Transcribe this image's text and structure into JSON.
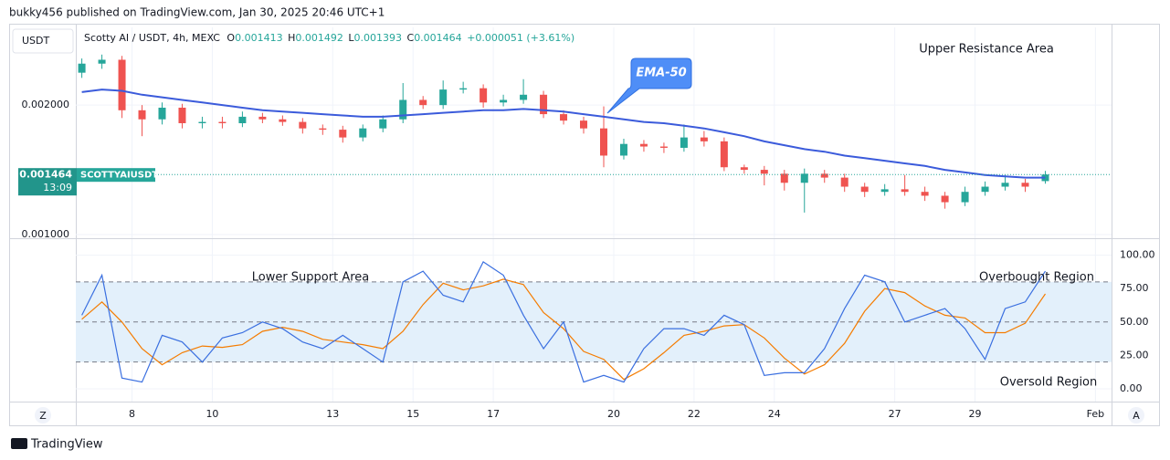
{
  "header": {
    "publisher": "bukky456 published on TradingView.com, Jan 30, 2025 20:46 UTC+1",
    "brand": "TradingView"
  },
  "controls": {
    "left": "Z",
    "right": "A"
  },
  "chart_data": [
    {
      "type": "candlestick",
      "currency": "USDT",
      "symbol": "Scotty AI / USDT, 4h, MEXC",
      "ohlc_labels": [
        "O",
        "H",
        "L",
        "C"
      ],
      "change": "+0.000051 (+3.61%)",
      "ticker": "SCOTTYAIUSDT",
      "countdown": "13:09",
      "up_color": "#26a69a",
      "down_color": "#ef5350",
      "x": [
        6.75,
        7.25,
        7.75,
        8.25,
        8.75,
        9.25,
        9.75,
        10.25,
        10.75,
        11.25,
        11.75,
        12.25,
        12.75,
        13.25,
        13.75,
        14.25,
        14.75,
        15.25,
        15.75,
        16.25,
        16.75,
        17.25,
        17.75,
        18.25,
        18.75,
        19.25,
        19.75,
        20.25,
        20.75,
        21.25,
        21.75,
        22.25,
        22.75,
        23.25,
        23.75,
        24.25,
        24.75,
        25.25,
        25.75,
        26.25,
        26.75,
        27.25,
        27.75,
        28.25,
        28.75,
        29.25,
        29.75,
        30.25,
        30.75
      ],
      "open": [
        0.00225,
        0.00232,
        0.00235,
        0.00196,
        0.00189,
        0.00198,
        0.00186,
        0.00187,
        0.00186,
        0.00191,
        0.00189,
        0.00187,
        0.00182,
        0.00181,
        0.00175,
        0.00182,
        0.00189,
        0.00204,
        0.002,
        0.00212,
        0.00213,
        0.00202,
        0.00204,
        0.00208,
        0.00193,
        0.00188,
        0.00182,
        0.00161,
        0.0017,
        0.00168,
        0.00167,
        0.00175,
        0.00172,
        0.00152,
        0.0015,
        0.00147,
        0.0014,
        0.00147,
        0.00144,
        0.00137,
        0.00133,
        0.00135,
        0.00133,
        0.0013,
        0.00125,
        0.00133,
        0.00137,
        0.0014,
        0.001413
      ],
      "high": [
        0.00236,
        0.00239,
        0.00238,
        0.002,
        0.00202,
        0.00201,
        0.00191,
        0.00191,
        0.00195,
        0.00194,
        0.00192,
        0.0019,
        0.00185,
        0.00184,
        0.00185,
        0.00192,
        0.00217,
        0.00207,
        0.00219,
        0.00218,
        0.00216,
        0.00208,
        0.0022,
        0.00211,
        0.00196,
        0.00191,
        0.00199,
        0.00174,
        0.00173,
        0.00171,
        0.00185,
        0.0018,
        0.00175,
        0.00154,
        0.00153,
        0.0015,
        0.00151,
        0.0015,
        0.00147,
        0.0014,
        0.00139,
        0.00146,
        0.00137,
        0.00133,
        0.00137,
        0.00141,
        0.00146,
        0.00143,
        0.001492
      ],
      "low": [
        0.00221,
        0.00228,
        0.0019,
        0.00176,
        0.00185,
        0.00182,
        0.00182,
        0.00182,
        0.00183,
        0.00186,
        0.00184,
        0.00178,
        0.00177,
        0.00171,
        0.00172,
        0.00179,
        0.00186,
        0.00197,
        0.00197,
        0.00209,
        0.00198,
        0.00199,
        0.00201,
        0.0019,
        0.00185,
        0.00178,
        0.00152,
        0.00158,
        0.00164,
        0.00163,
        0.00164,
        0.00168,
        0.00149,
        0.00147,
        0.00138,
        0.00134,
        0.00117,
        0.0014,
        0.00133,
        0.00129,
        0.0013,
        0.0013,
        0.00126,
        0.0012,
        0.00122,
        0.0013,
        0.00134,
        0.00133,
        0.001393
      ],
      "close": [
        0.00232,
        0.00235,
        0.00196,
        0.00189,
        0.00198,
        0.00186,
        0.00187,
        0.00186,
        0.00191,
        0.00189,
        0.00187,
        0.00182,
        0.00181,
        0.00175,
        0.00182,
        0.00189,
        0.00204,
        0.002,
        0.00212,
        0.00213,
        0.00202,
        0.00204,
        0.00208,
        0.00193,
        0.00188,
        0.00182,
        0.00161,
        0.0017,
        0.00168,
        0.00167,
        0.00175,
        0.00172,
        0.00152,
        0.0015,
        0.00147,
        0.0014,
        0.00147,
        0.00144,
        0.00137,
        0.00133,
        0.00135,
        0.00133,
        0.0013,
        0.00125,
        0.00133,
        0.00137,
        0.0014,
        0.00137,
        0.001464
      ],
      "series": [
        {
          "name": "EMA-50",
          "color": "#3b5bdb",
          "values": [
            0.0021,
            0.00212,
            0.00211,
            0.00208,
            0.00206,
            0.00204,
            0.00202,
            0.002,
            0.00198,
            0.00196,
            0.00195,
            0.00194,
            0.00193,
            0.00192,
            0.00191,
            0.00191,
            0.00192,
            0.00193,
            0.00194,
            0.00195,
            0.00196,
            0.00196,
            0.00197,
            0.00196,
            0.00195,
            0.00193,
            0.00191,
            0.00189,
            0.00187,
            0.00186,
            0.00184,
            0.00182,
            0.00179,
            0.00176,
            0.00172,
            0.00169,
            0.00166,
            0.00164,
            0.00161,
            0.00159,
            0.00157,
            0.00155,
            0.00153,
            0.0015,
            0.00148,
            0.00146,
            0.00145,
            0.00144,
            0.00144
          ]
        }
      ],
      "annotations": [
        "Upper Resistance Area"
      ],
      "xlim": [
        6.6,
        32.4
      ],
      "ylim": [
        0.000972,
        0.0026
      ],
      "yticks": [
        {
          "value": 0.002,
          "label": "0.002000"
        },
        {
          "value": 0.001,
          "label": "0.001000"
        }
      ],
      "xticks": [
        8,
        10,
        13,
        15,
        17,
        20,
        22,
        24,
        27,
        29,
        {
          "value": 32,
          "label": "Feb"
        }
      ],
      "grid": true
    },
    {
      "type": "line",
      "x": [
        6.75,
        7.25,
        7.75,
        8.25,
        8.75,
        9.25,
        9.75,
        10.25,
        10.75,
        11.25,
        11.75,
        12.25,
        12.75,
        13.25,
        13.75,
        14.25,
        14.75,
        15.25,
        15.75,
        16.25,
        16.75,
        17.25,
        17.75,
        18.25,
        18.75,
        19.25,
        19.75,
        20.25,
        20.75,
        21.25,
        21.75,
        22.25,
        22.75,
        23.25,
        23.75,
        24.25,
        24.75,
        25.25,
        25.75,
        26.25,
        26.75,
        27.25,
        27.75,
        28.25,
        28.75,
        29.25,
        29.75,
        30.25,
        30.75
      ],
      "series": [
        {
          "color": "#3a6fe0",
          "values": [
            55,
            85,
            8,
            5,
            40,
            35,
            20,
            38,
            42,
            50,
            45,
            35,
            30,
            40,
            30,
            20,
            80,
            88,
            70,
            65,
            95,
            85,
            55,
            30,
            50,
            5,
            10,
            5,
            30,
            45,
            45,
            40,
            55,
            48,
            10,
            12,
            12,
            30,
            60,
            85,
            80,
            50,
            55,
            60,
            45,
            22,
            60,
            65,
            88
          ]
        },
        {
          "color": "#f57c00",
          "values": [
            52,
            65,
            50,
            30,
            18,
            27,
            32,
            31,
            33,
            43,
            46,
            43,
            37,
            35,
            33,
            30,
            43,
            63,
            79,
            74,
            77,
            82,
            78,
            57,
            45,
            28,
            22,
            7,
            15,
            27,
            40,
            43,
            47,
            48,
            38,
            23,
            11,
            18,
            34,
            58,
            75,
            72,
            62,
            55,
            53,
            42,
            42,
            49,
            71
          ]
        }
      ],
      "levels": [
        80,
        50,
        20
      ],
      "band_color": "#e3f0fb",
      "annotations": [
        "Lower Support Area",
        "Overbought Region",
        "Oversold Region"
      ],
      "xlim": [
        6.6,
        32.4
      ],
      "ylim": [
        -9.6,
        112
      ],
      "yticks": [
        {
          "value": 100,
          "label": "100.00"
        },
        {
          "value": 75,
          "label": "75.00"
        },
        {
          "value": 50,
          "label": "50.00"
        },
        {
          "value": 25,
          "label": "25.00"
        },
        {
          "value": 0,
          "label": "0.00"
        }
      ],
      "xticks": [
        8,
        10,
        13,
        15,
        17,
        20,
        22,
        24,
        27,
        29,
        {
          "value": 32,
          "label": "Feb"
        }
      ],
      "grid": true
    }
  ]
}
